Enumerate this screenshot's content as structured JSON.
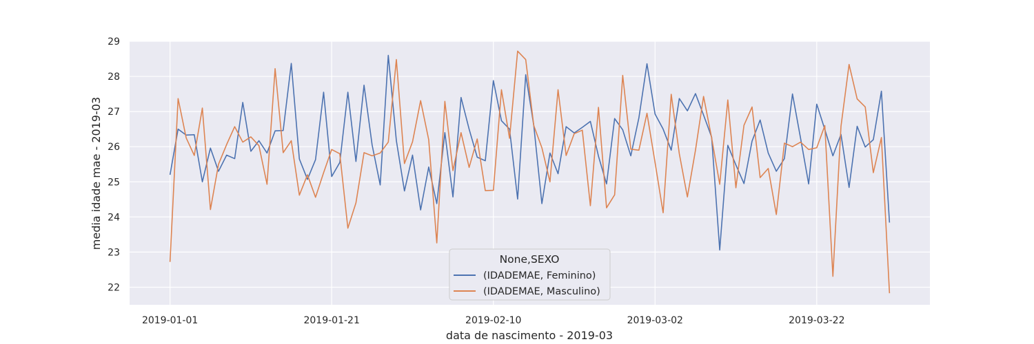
{
  "chart_data": {
    "type": "line",
    "xlabel": "data de nascimento - 2019-03",
    "ylabel": "media idade mae - 2019-03",
    "x_start": "2019-01-01",
    "x_end": "2019-03-31",
    "x_tick_labels": [
      "2019-01-01",
      "2019-01-21",
      "2019-02-10",
      "2019-03-02",
      "2019-03-22"
    ],
    "xlim": [
      "2018-12-27",
      "2019-04-05"
    ],
    "ylim": [
      21.5,
      29.0
    ],
    "y_ticks": [
      22,
      23,
      24,
      25,
      26,
      27,
      28,
      29
    ],
    "grid": true,
    "legend": {
      "title": "None,SEXO",
      "position": "lower-center",
      "entries": [
        "(IDADEMAE, Feminino)",
        "(IDADEMAE, Masculino)"
      ]
    },
    "series": [
      {
        "name": "(IDADEMAE, Feminino)",
        "color": "#4c72b0",
        "values": [
          25.2,
          26.5,
          26.33,
          26.34,
          25.0,
          25.96,
          25.3,
          25.76,
          25.66,
          27.26,
          25.87,
          26.17,
          25.82,
          26.45,
          26.46,
          28.37,
          25.65,
          25.07,
          25.63,
          27.55,
          25.15,
          25.55,
          27.55,
          25.58,
          27.75,
          26.05,
          24.91,
          28.6,
          26.17,
          24.74,
          25.76,
          24.2,
          25.42,
          24.38,
          26.4,
          24.57,
          27.4,
          26.5,
          25.7,
          25.6,
          27.88,
          26.74,
          26.5,
          24.51,
          28.05,
          26.6,
          24.38,
          25.82,
          25.23,
          26.57,
          26.39,
          26.55,
          26.72,
          25.73,
          24.94,
          26.8,
          26.48,
          25.74,
          26.82,
          28.36,
          26.93,
          26.5,
          25.9,
          27.37,
          27.02,
          27.51,
          26.9,
          26.27,
          23.06,
          26.04,
          25.48,
          24.95,
          26.16,
          26.76,
          25.82,
          25.3,
          25.66,
          27.5,
          26.24,
          24.94,
          27.21,
          26.49,
          25.74,
          26.35,
          24.84,
          26.58,
          25.99,
          26.2,
          27.58,
          23.84
        ]
      },
      {
        "name": "(IDADEMAE, Masculino)",
        "color": "#dd8452",
        "values": [
          22.72,
          27.37,
          26.25,
          25.75,
          27.1,
          24.21,
          25.5,
          26.06,
          26.57,
          26.13,
          26.28,
          26.03,
          24.93,
          28.22,
          25.83,
          26.17,
          24.62,
          25.2,
          24.56,
          25.26,
          25.92,
          25.8,
          23.68,
          24.4,
          25.83,
          25.74,
          25.82,
          26.13,
          28.48,
          25.52,
          26.14,
          27.31,
          26.2,
          23.26,
          27.29,
          25.32,
          26.4,
          25.41,
          26.22,
          24.75,
          24.76,
          27.62,
          26.24,
          28.72,
          28.48,
          26.6,
          25.97,
          25.0,
          27.62,
          25.75,
          26.37,
          26.47,
          24.32,
          27.12,
          24.26,
          24.63,
          28.03,
          25.93,
          25.9,
          26.95,
          25.55,
          24.12,
          27.49,
          25.8,
          24.57,
          25.9,
          27.43,
          26.25,
          24.93,
          27.33,
          24.83,
          26.61,
          27.13,
          25.12,
          25.38,
          24.07,
          26.1,
          26.0,
          26.13,
          25.92,
          25.97,
          26.6,
          22.31,
          26.58,
          28.34,
          27.36,
          27.13,
          25.26,
          26.26,
          21.83
        ]
      }
    ]
  }
}
